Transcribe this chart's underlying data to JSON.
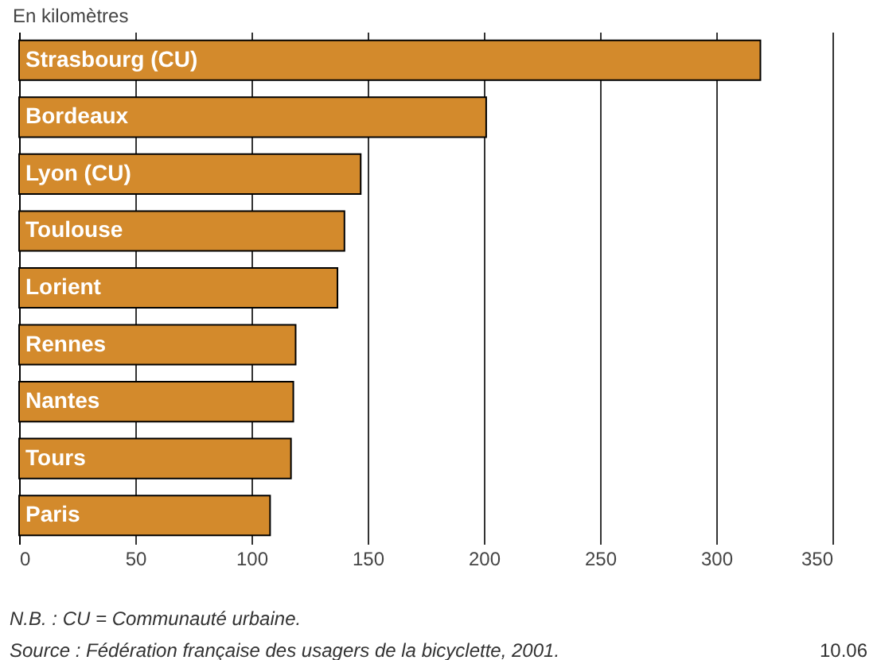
{
  "chart_data": {
    "type": "bar",
    "orientation": "horizontal",
    "title": "En kilomètres",
    "categories": [
      "Strasbourg (CU)",
      "Bordeaux",
      "Lyon (CU)",
      "Toulouse",
      "Lorient",
      "Rennes",
      "Nantes",
      "Tours",
      "Paris"
    ],
    "values": [
      319,
      201,
      147,
      140,
      137,
      119,
      118,
      117,
      108
    ],
    "color": "#d38a2c",
    "xlim": [
      0,
      350
    ],
    "xticks": [
      0,
      50,
      100,
      150,
      200,
      250,
      300,
      350
    ],
    "grid": "x",
    "annotations": [
      "N.B. : CU = Communauté urbaine.",
      "Source : Fédération française des usagers de la bicyclette, 2001.",
      "10.06"
    ]
  }
}
